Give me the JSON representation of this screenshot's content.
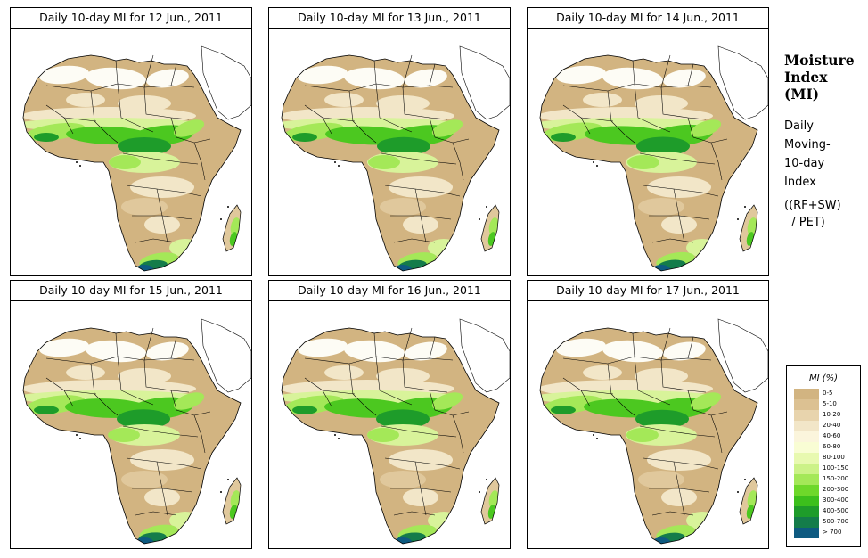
{
  "panels": [
    {
      "title": "Daily 10-day MI for  12 Jun., 2011",
      "variant": 0
    },
    {
      "title": "Daily 10-day MI for  13 Jun., 2011",
      "variant": 1
    },
    {
      "title": "Daily 10-day MI for  14 Jun., 2011",
      "variant": 2
    },
    {
      "title": "Daily 10-day MI for  15 Jun., 2011",
      "variant": 3
    },
    {
      "title": "Daily 10-day MI for  16 Jun., 2011",
      "variant": 4
    },
    {
      "title": "Daily 10-day MI for  17 Jun., 2011",
      "variant": 5
    }
  ],
  "sidebar": {
    "title_lines": [
      "Moisture",
      "Index",
      "(MI)"
    ],
    "desc_lines": [
      "Daily",
      "Moving-",
      "10-day",
      "Index"
    ],
    "formula": "((RF+SW)\n  / PET)"
  },
  "legend": {
    "title": "MI (%)",
    "classes": [
      {
        "label": "0-5",
        "color": "#d2b481"
      },
      {
        "label": "5-10",
        "color": "#dcc192"
      },
      {
        "label": "10-20",
        "color": "#e8d4ad"
      },
      {
        "label": "20-40",
        "color": "#f2e6c8"
      },
      {
        "label": "40-60",
        "color": "#fbf5dc"
      },
      {
        "label": "60-80",
        "color": "#f9fdd4"
      },
      {
        "label": "80-100",
        "color": "#e8f9b0"
      },
      {
        "label": "100-150",
        "color": "#ccf288"
      },
      {
        "label": "150-200",
        "color": "#a4e858"
      },
      {
        "label": "200-300",
        "color": "#6ed82a"
      },
      {
        "label": "300-400",
        "color": "#3cc01c"
      },
      {
        "label": "400-500",
        "color": "#1e9c2a"
      },
      {
        "label": "500-700",
        "color": "#147c4a"
      },
      {
        "label": "> 700",
        "color": "#0e5a80"
      }
    ]
  },
  "map_colors": {
    "desert": "#d2b481",
    "sand": "#e0c89c",
    "light": "#f2e6c8",
    "white": "#fdfcf5",
    "yellowgreen": "#d8f39a",
    "lightgreen": "#a4e858",
    "green": "#4cc820",
    "darkgreen": "#1e9c2a",
    "forest": "#147c4a",
    "blue": "#0e5a80",
    "border": "#000000"
  }
}
